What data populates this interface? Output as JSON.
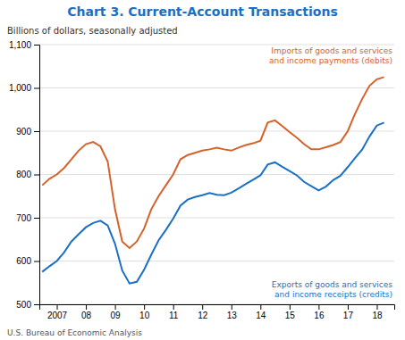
{
  "chart_data": {
    "type": "line",
    "title": "Chart 3. Current-Account Transactions",
    "subtitle": "Billions of dollars, seasonally adjusted",
    "footer": "U.S. Bureau of Economic Analysis",
    "title_color": "#1a70c4",
    "grid": true,
    "xlim": [
      2006.4,
      2018.6
    ],
    "xticks": [
      2007,
      {
        "value": 2008,
        "label": "08"
      },
      {
        "value": 2009,
        "label": "09"
      },
      {
        "value": 2010,
        "label": "10"
      },
      {
        "value": 2011,
        "label": "11"
      },
      {
        "value": 2012,
        "label": "12"
      },
      {
        "value": 2013,
        "label": "13"
      },
      {
        "value": 2014,
        "label": "14"
      },
      {
        "value": 2015,
        "label": "15"
      },
      {
        "value": 2016,
        "label": "16"
      },
      {
        "value": 2017,
        "label": "17"
      },
      {
        "value": 2018,
        "label": "18"
      }
    ],
    "ylim": [
      500,
      1100
    ],
    "yticks": [
      500,
      600,
      700,
      800,
      900,
      {
        "value": 1000,
        "label": "1,000"
      },
      {
        "value": 1100,
        "label": "1,100"
      }
    ],
    "x": [
      2006.5,
      2006.75,
      2007.0,
      2007.25,
      2007.5,
      2007.75,
      2008.0,
      2008.25,
      2008.5,
      2008.75,
      2009.0,
      2009.25,
      2009.5,
      2009.75,
      2010.0,
      2010.25,
      2010.5,
      2010.75,
      2011.0,
      2011.25,
      2011.5,
      2011.75,
      2012.0,
      2012.25,
      2012.5,
      2012.75,
      2013.0,
      2013.25,
      2013.5,
      2013.75,
      2014.0,
      2014.25,
      2014.5,
      2014.75,
      2015.0,
      2015.25,
      2015.5,
      2015.75,
      2016.0,
      2016.25,
      2016.5,
      2016.75,
      2017.0,
      2017.25,
      2017.5,
      2017.75,
      2018.0,
      2018.25
    ],
    "series": [
      {
        "name": "Imports of goods and services\nand income payments (debits)",
        "color": "#d4622a",
        "values": [
          775,
          790,
          800,
          815,
          835,
          855,
          870,
          875,
          865,
          830,
          720,
          645,
          630,
          645,
          675,
          720,
          750,
          775,
          800,
          835,
          845,
          850,
          855,
          858,
          862,
          858,
          855,
          862,
          868,
          872,
          878,
          920,
          925,
          912,
          898,
          885,
          870,
          858,
          858,
          863,
          868,
          875,
          900,
          940,
          975,
          1005,
          1020,
          1025
        ]
      },
      {
        "name": "Exports of goods and services\nand income receipts (credits)",
        "color": "#1a70c4",
        "values": [
          575,
          588,
          600,
          620,
          645,
          662,
          678,
          688,
          693,
          682,
          640,
          578,
          548,
          552,
          580,
          615,
          648,
          672,
          698,
          728,
          742,
          748,
          752,
          757,
          753,
          752,
          758,
          768,
          778,
          788,
          798,
          823,
          828,
          818,
          808,
          798,
          783,
          773,
          763,
          772,
          787,
          797,
          817,
          838,
          858,
          888,
          913,
          920
        ]
      }
    ]
  }
}
